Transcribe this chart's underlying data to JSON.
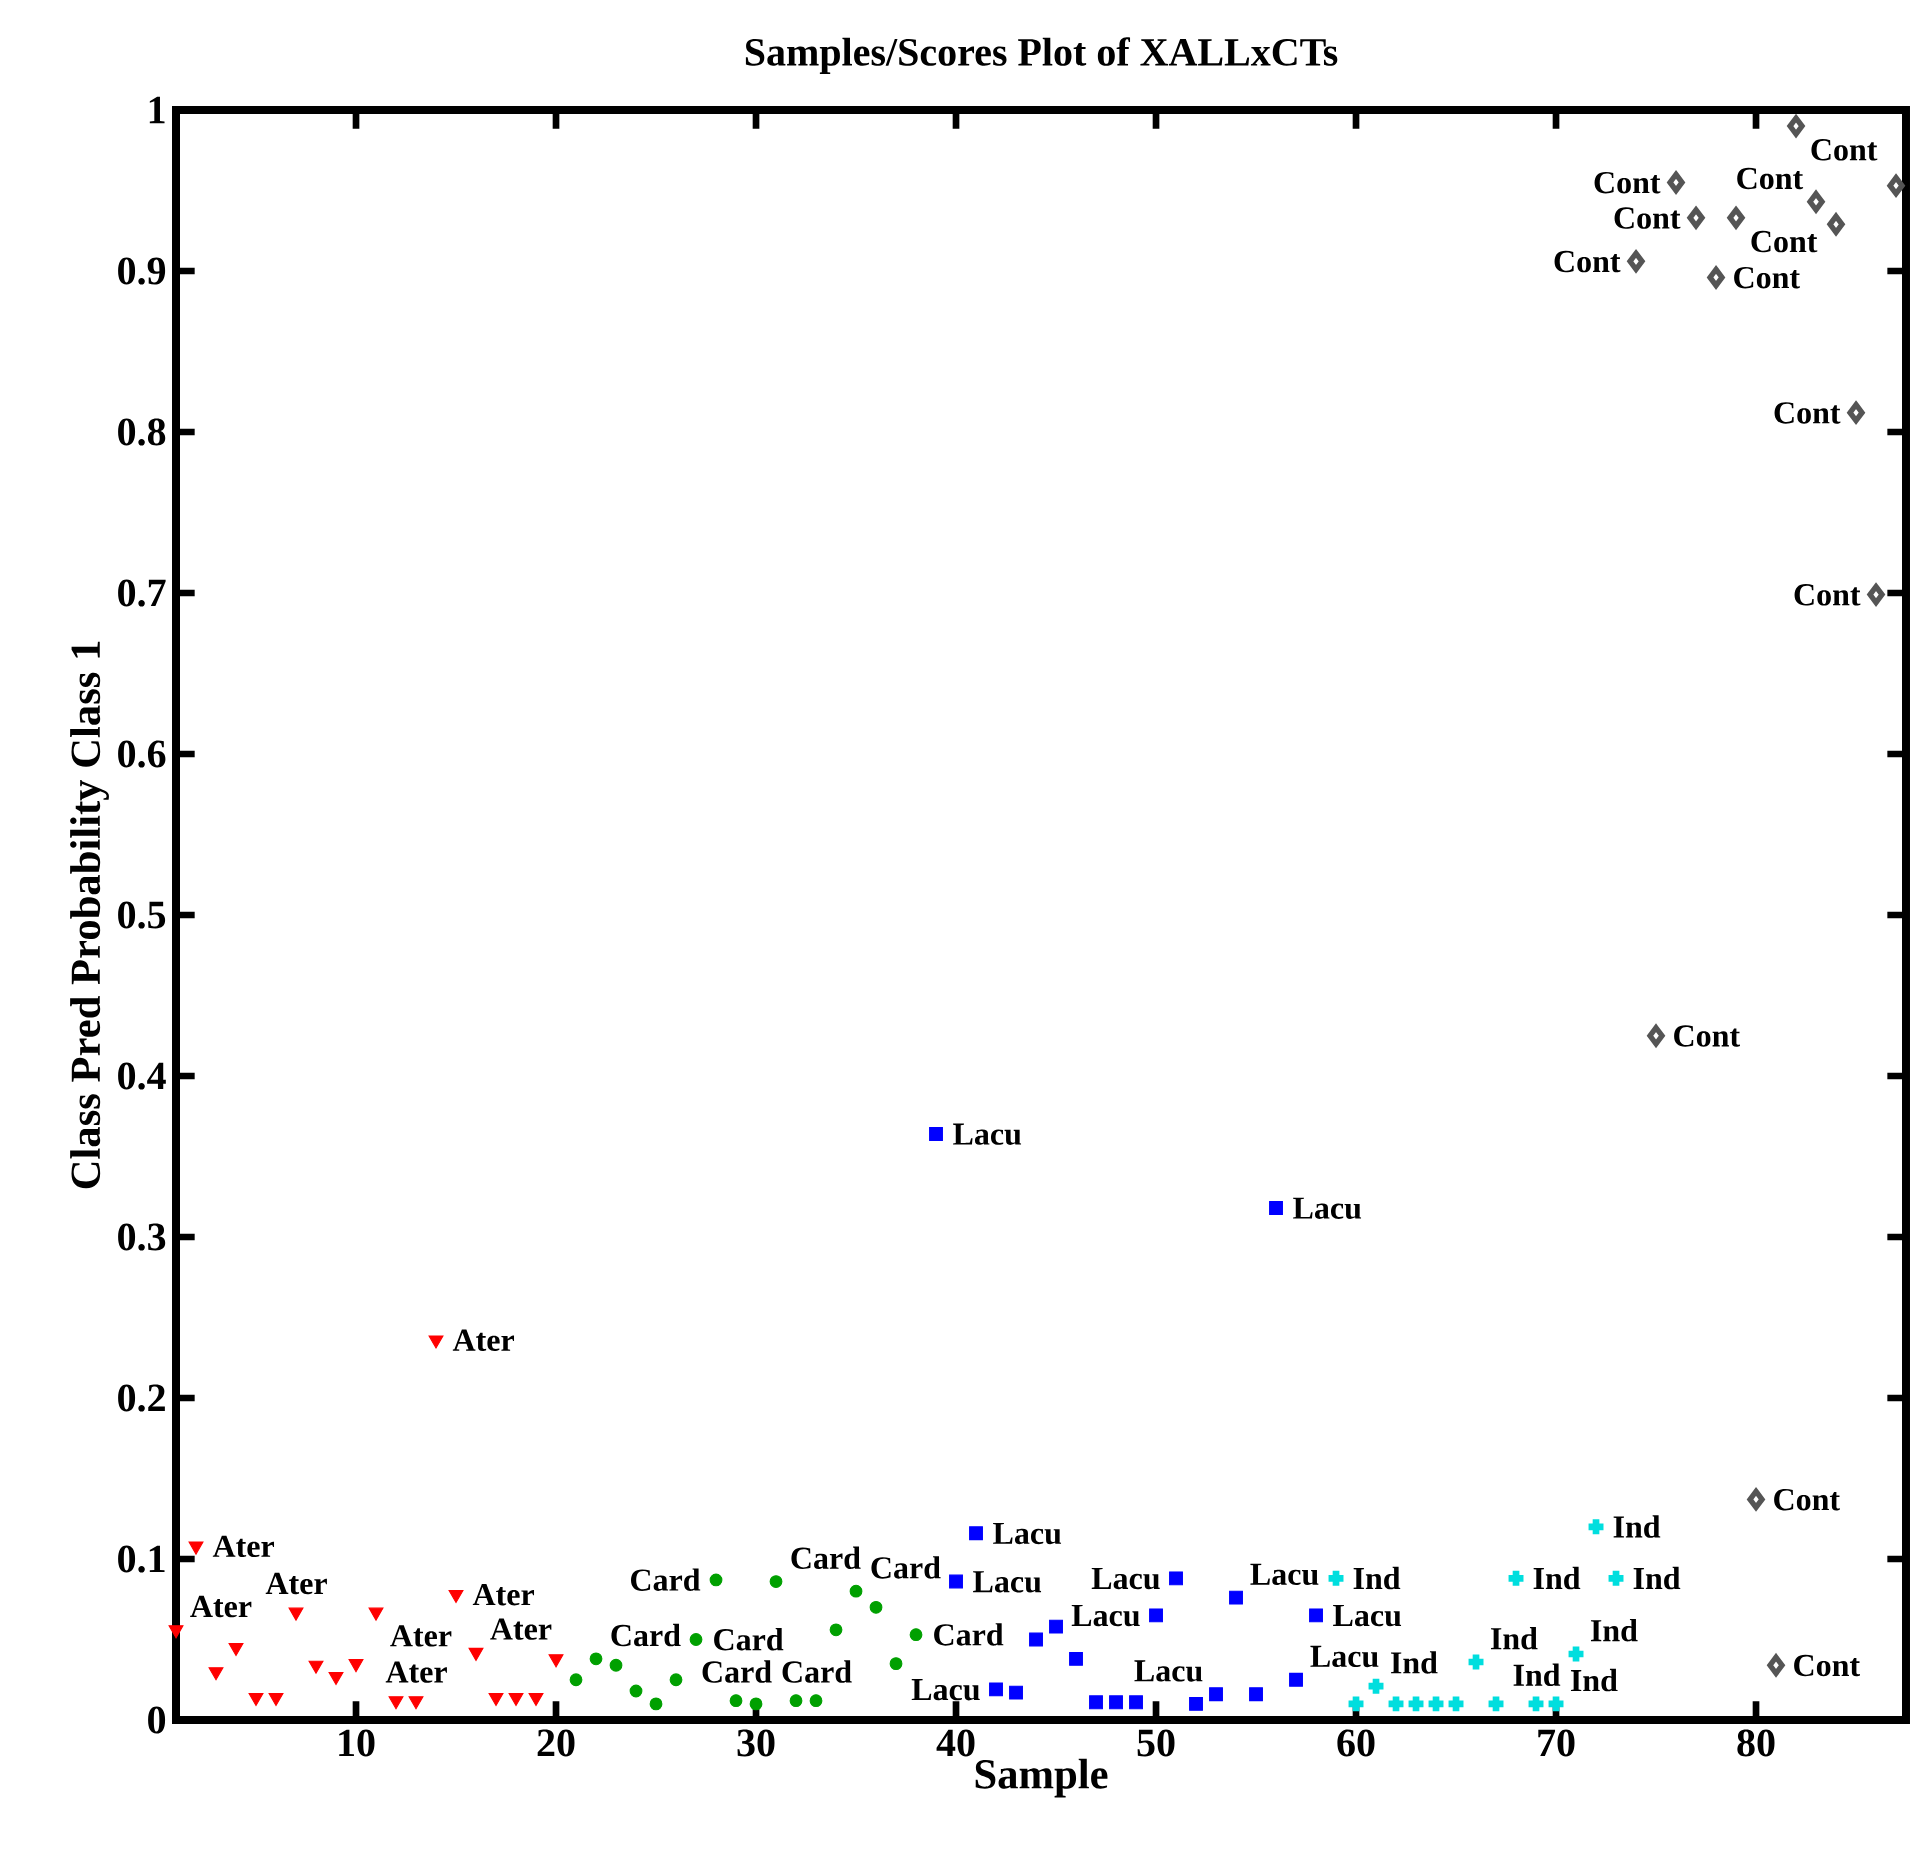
{
  "chart_data": {
    "type": "scatter",
    "title": "Samples/Scores Plot of XALLxCTs",
    "xlabel": "Sample",
    "ylabel": "Class Pred Probability Class 1",
    "xlim": [
      1,
      87.5
    ],
    "ylim": [
      0,
      1
    ],
    "xticks": [
      10,
      20,
      30,
      40,
      50,
      60,
      70,
      80
    ],
    "yticks": [
      0,
      0.1,
      0.2,
      0.3,
      0.4,
      0.5,
      0.6,
      0.7,
      0.8,
      0.9,
      1
    ],
    "grid": false,
    "series": [
      {
        "color": "#ff0000",
        "marker": "triangle",
        "x": [
          1,
          2,
          3,
          4,
          5,
          6,
          7,
          8,
          9,
          10,
          11,
          12,
          13,
          14,
          15,
          16,
          17,
          18,
          19,
          20
        ],
        "values": [
          0.056,
          0.108,
          0.03,
          0.045,
          0.014,
          0.014,
          0.067,
          0.034,
          0.027,
          0.035,
          0.067,
          0.012,
          0.012,
          0.236,
          0.078,
          0.042,
          0.014,
          0.014,
          0.014,
          0.038
        ],
        "value_labels": [
          "Ater",
          "Ater",
          null,
          null,
          null,
          null,
          "Ater",
          null,
          null,
          null,
          "Ater",
          null,
          "Ater",
          "Ater",
          "Ater",
          "Ater",
          null,
          null,
          null,
          null
        ]
      },
      {
        "color": "#00a000",
        "marker": "circle",
        "x": [
          21,
          22,
          23,
          24,
          25,
          26,
          27,
          28,
          29,
          30,
          31,
          32,
          33,
          34,
          35,
          36,
          37,
          38
        ],
        "values": [
          0.025,
          0.038,
          0.034,
          0.018,
          0.01,
          0.025,
          0.05,
          0.087,
          0.012,
          0.01,
          0.086,
          0.012,
          0.012,
          0.056,
          0.08,
          0.07,
          0.035,
          0.053
        ],
        "value_labels": [
          null,
          "Card",
          null,
          null,
          null,
          null,
          "Card",
          "Card",
          "Card",
          null,
          "Card",
          null,
          "Card",
          null,
          "Card",
          null,
          null,
          "Card"
        ]
      },
      {
        "color": "#0000ff",
        "marker": "square",
        "x": [
          39,
          40,
          41,
          42,
          43,
          44,
          45,
          46,
          47,
          48,
          49,
          50,
          51,
          52,
          53,
          54,
          55,
          56,
          57,
          58
        ],
        "values": [
          0.364,
          0.086,
          0.116,
          0.019,
          0.017,
          0.05,
          0.058,
          0.038,
          0.011,
          0.011,
          0.011,
          0.065,
          0.088,
          0.01,
          0.016,
          0.076,
          0.016,
          0.318,
          0.025,
          0.065
        ],
        "value_labels": [
          "Lacu",
          "Lacu",
          "Lacu",
          "Lacu",
          null,
          null,
          null,
          null,
          null,
          null,
          null,
          "Lacu",
          "Lacu",
          null,
          "Lacu",
          "Lacu",
          null,
          "Lacu",
          "Lacu",
          "Lacu"
        ]
      },
      {
        "color": "#00dede",
        "marker": "cross",
        "x": [
          59,
          60,
          61,
          62,
          63,
          64,
          65,
          66,
          67,
          68,
          69,
          70,
          71,
          72,
          73
        ],
        "values": [
          0.088,
          0.01,
          0.021,
          0.01,
          0.01,
          0.01,
          0.01,
          0.036,
          0.01,
          0.088,
          0.01,
          0.01,
          0.041,
          0.12,
          0.088
        ],
        "value_labels": [
          "Ind",
          null,
          "Ind",
          null,
          null,
          null,
          null,
          "Ind",
          null,
          "Ind",
          "Ind",
          "Ind",
          "Ind",
          "Ind",
          "Ind"
        ]
      },
      {
        "color": "#555555",
        "marker": "diamond",
        "x": [
          74,
          75,
          76,
          77,
          78,
          79,
          80,
          81,
          82,
          83,
          84,
          85,
          86,
          87
        ],
        "values": [
          0.906,
          0.425,
          0.955,
          0.933,
          0.896,
          0.933,
          0.137,
          0.034,
          0.99,
          0.943,
          0.929,
          0.812,
          0.699,
          0.953
        ],
        "value_labels": [
          "Cont",
          "Cont",
          "Cont",
          "Cont",
          "Cont",
          "Cont",
          "Cont",
          "Cont",
          "Cont",
          "Cont",
          null,
          "Cont",
          "Cont",
          null
        ]
      }
    ]
  }
}
